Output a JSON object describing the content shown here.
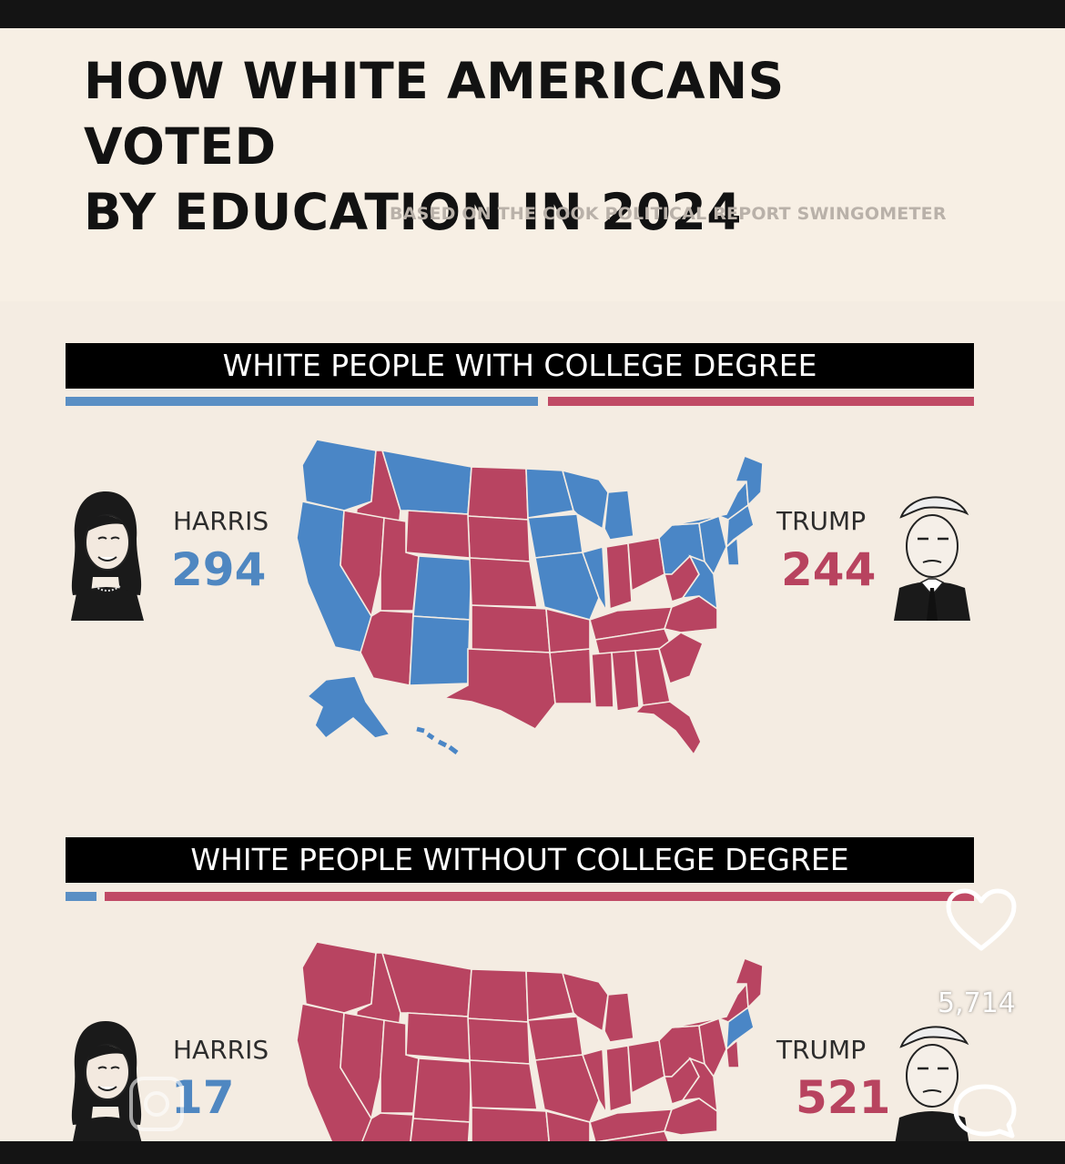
{
  "post": {
    "title": "HOW WHITE AMERICANS VOTED BY EDUCATION IN 2024",
    "title_line1": "HOW WHITE AMERICANS VOTED",
    "title_line2": "BY EDUCATION IN 2024",
    "subtitle": "BASED ON THE COOK POLITICAL REPORT SWINGOMETER"
  },
  "sections": [
    {
      "heading": "WHITE PEOPLE WITH COLLEGE DEGREE",
      "harris_label": "HARRIS",
      "harris_votes": "294",
      "trump_label": "TRUMP",
      "trump_votes": "244",
      "blue_share": 0.546
    },
    {
      "heading": "WHITE PEOPLE WITHOUT COLLEGE DEGREE",
      "harris_label": "HARRIS",
      "harris_votes": "17",
      "trump_label": "TRUMP",
      "trump_votes": "521",
      "blue_share": 0.032
    }
  ],
  "overlay": {
    "likes_count": "5,714",
    "like_icon": "heart-icon",
    "comment_icon": "comment-bubble-icon"
  },
  "colors": {
    "harris_blue": "#4f87c1",
    "trump_red": "#b8435f",
    "map_blue": "#4a86c6",
    "map_red": "#b84461",
    "background": "#f7efe4"
  }
}
